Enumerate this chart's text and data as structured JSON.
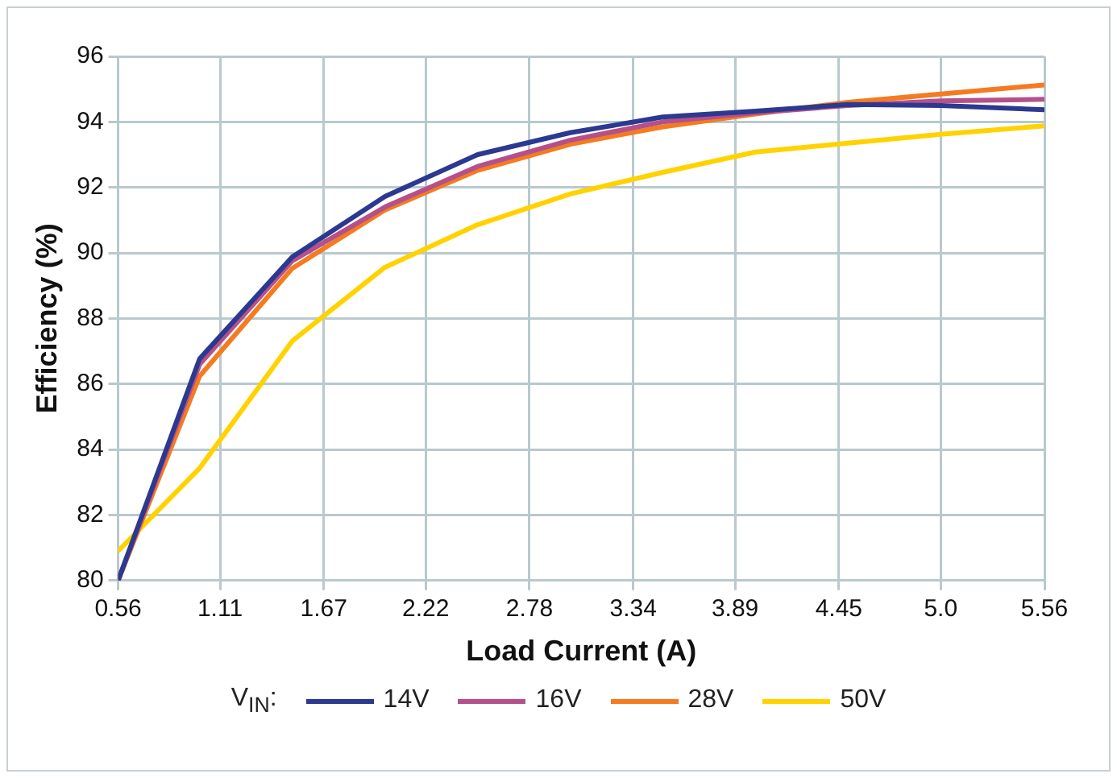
{
  "chart_data": {
    "type": "line",
    "xlabel": "Load Current (A)",
    "ylabel": "Efficiency (%)",
    "legend_title": "V$_{IN}$:",
    "x": [
      0.56,
      1.0,
      1.5,
      2.0,
      2.5,
      3.0,
      3.5,
      4.0,
      4.5,
      5.0,
      5.56
    ],
    "series": [
      {
        "name": "14V",
        "color": "#2b3990",
        "values": [
          80.0,
          86.77,
          89.88,
          91.72,
          93.0,
          93.67,
          94.15,
          94.33,
          94.53,
          94.5,
          94.37
        ]
      },
      {
        "name": "16V",
        "color": "#b5508a",
        "values": [
          80.0,
          86.6,
          89.76,
          91.4,
          92.64,
          93.44,
          94.0,
          94.28,
          94.5,
          94.64,
          94.69
        ]
      },
      {
        "name": "28V",
        "color": "#f47b20",
        "values": [
          80.0,
          86.24,
          89.53,
          91.31,
          92.52,
          93.32,
          93.85,
          94.24,
          94.6,
          94.85,
          95.13
        ]
      },
      {
        "name": "50V",
        "color": "#ffd200",
        "values": [
          80.9,
          83.43,
          87.31,
          89.56,
          90.86,
          91.8,
          92.46,
          93.08,
          93.35,
          93.62,
          93.88
        ]
      }
    ],
    "xlim": [
      0.56,
      5.56
    ],
    "xticks": [
      0.56,
      1.11,
      1.67,
      2.22,
      2.78,
      3.34,
      3.89,
      4.45,
      {
        "value": 5.0,
        "label": "5.0"
      },
      5.56
    ],
    "ylim": [
      80,
      96
    ],
    "yticks": [
      80,
      82,
      84,
      86,
      88,
      90,
      92,
      94,
      96
    ],
    "grid": true,
    "legend": "bottom",
    "marker": "none",
    "line_style": "solid"
  }
}
